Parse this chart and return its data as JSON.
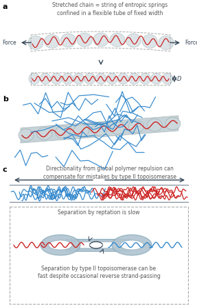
{
  "bg_color": "#ffffff",
  "text_color": "#555555",
  "red_color": "#cc2222",
  "blue_color": "#3388cc",
  "gray_fill": "#c8d4d8",
  "gray_edge": "#99aaaa",
  "blob_fill": "#d8e0e4",
  "blob_edge": "#aabbbb",
  "dark": "#334455",
  "dashed": "#aaaaaa",
  "label_a": "a",
  "label_b": "b",
  "label_c": "c",
  "title_a": "Stretched chain = string of entropic springs\nconfined in a flexible tube of fixed width",
  "force": "Force",
  "text_c": "Directionality from global polymer repulsion can\ncompensate for mistakes by type II topoisomerase",
  "text_box1": "Separation by reptation is slow",
  "text_box2": "Separation by type II topoisomerase can be\nfast despite occasional reverse strand-passing"
}
